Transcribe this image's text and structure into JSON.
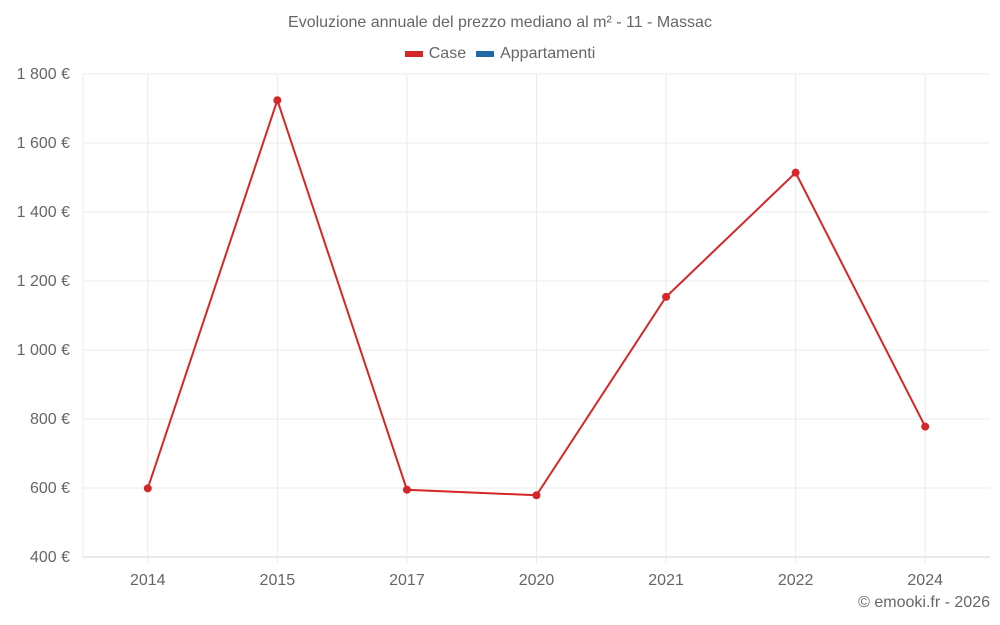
{
  "title": "Evoluzione annuale del prezzo mediano al m² - 11 - Massac",
  "legend": [
    {
      "label": "Case",
      "color": "#d62728"
    },
    {
      "label": "Appartamenti",
      "color": "#1f6aa5"
    }
  ],
  "credit": "© emooki.fr - 2026",
  "chart_data": {
    "type": "line",
    "title": "Evoluzione annuale del prezzo mediano al m² - 11 - Massac",
    "xlabel": "",
    "ylabel": "",
    "categories": [
      "2014",
      "2015",
      "2017",
      "2020",
      "2021",
      "2022",
      "2024"
    ],
    "series": [
      {
        "name": "Case",
        "color": "#d62728",
        "values": [
          599,
          1724,
          595,
          579,
          1154,
          1514,
          778
        ]
      },
      {
        "name": "Appartamenti",
        "color": "#1f6aa5",
        "values": []
      }
    ],
    "ylim": [
      400,
      1800
    ],
    "yticks": [
      400,
      600,
      800,
      1000,
      1200,
      1400,
      1600,
      1800
    ],
    "ytick_labels": [
      "400 €",
      "600 €",
      "800 €",
      "1 000 €",
      "1 200 €",
      "1 400 €",
      "1 600 €",
      "1 800 €"
    ],
    "grid": true,
    "legend_position": "top"
  }
}
